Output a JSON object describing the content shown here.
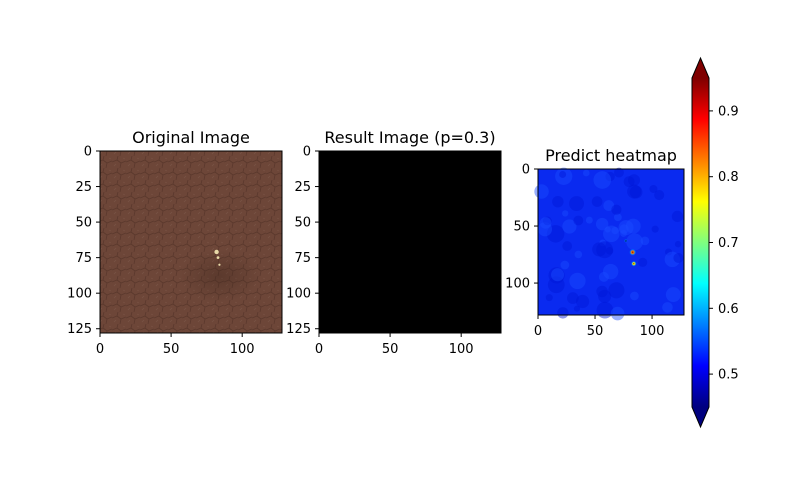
{
  "chart_data": [
    {
      "type": "heatmap",
      "title": "Original Image",
      "image": "original-leather-texture",
      "colors": {
        "base": "#6d4638",
        "dark": "#5a382c",
        "light": "#7a5345",
        "defect": "#e8d9a8"
      },
      "xlim": [
        0,
        128
      ],
      "ylim": [
        128,
        0
      ],
      "xticks": [
        0,
        50,
        100
      ],
      "yticks": [
        0,
        25,
        50,
        75,
        100,
        125
      ],
      "defect_points": [
        {
          "x": 82,
          "y": 71,
          "r": 2.2
        },
        {
          "x": 83,
          "y": 75,
          "r": 1.4
        },
        {
          "x": 84,
          "y": 80,
          "r": 1.1
        }
      ]
    },
    {
      "type": "heatmap",
      "title": "Result Image (p=0.3)",
      "image": "result-mask",
      "colors": {
        "fill": "#000000"
      },
      "xlim": [
        0,
        128
      ],
      "ylim": [
        128,
        0
      ],
      "xticks": [
        0,
        50,
        100
      ],
      "yticks": [
        0,
        25,
        50,
        75,
        100,
        125
      ]
    },
    {
      "type": "heatmap",
      "title": "Predict heatmap",
      "image": "prediction-heatmap",
      "colors": {
        "background": "#0a2af0"
      },
      "xlim": [
        0,
        128
      ],
      "ylim": [
        128,
        0
      ],
      "xticks": [
        0,
        50,
        100
      ],
      "yticks": [
        0,
        50,
        100
      ],
      "hotspots": [
        {
          "x": 83,
          "y": 73,
          "peak": 0.95,
          "spread": 3.2
        },
        {
          "x": 84,
          "y": 83,
          "peak": 0.92,
          "spread": 2.6
        },
        {
          "x": 77,
          "y": 63,
          "peak": 0.62,
          "spread": 1.6
        }
      ]
    }
  ],
  "colorbar": {
    "colormap": "jet",
    "range": [
      0.45,
      0.95
    ],
    "ticks": [
      0.5,
      0.6,
      0.7,
      0.8,
      0.9
    ],
    "tick_labels": [
      "0.5",
      "0.6",
      "0.7",
      "0.8",
      "0.9"
    ],
    "extend": "both",
    "stops": [
      "#00007f",
      "#0000ff",
      "#007fff",
      "#00ffff",
      "#7fff7f",
      "#ffff00",
      "#ff7f00",
      "#ff0000",
      "#7f0000"
    ]
  }
}
